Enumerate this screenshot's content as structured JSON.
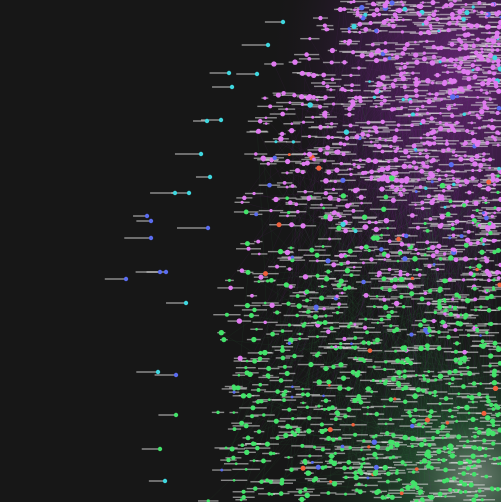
{
  "colors": {
    "background": "#171717",
    "cluster_purple_node": "#e07af0",
    "cluster_green_node": "#43e36a",
    "cluster_cyan_node": "#3fd7df",
    "blue_node": "#5a6cf0",
    "red_node": "#f0603c",
    "purple_edge_haze": "#7a2a8c",
    "green_edge_haze": "#2f8a4a"
  },
  "graph": {
    "kind": "network",
    "node_groups": [
      "purple",
      "green",
      "cyan",
      "blue",
      "red"
    ]
  }
}
